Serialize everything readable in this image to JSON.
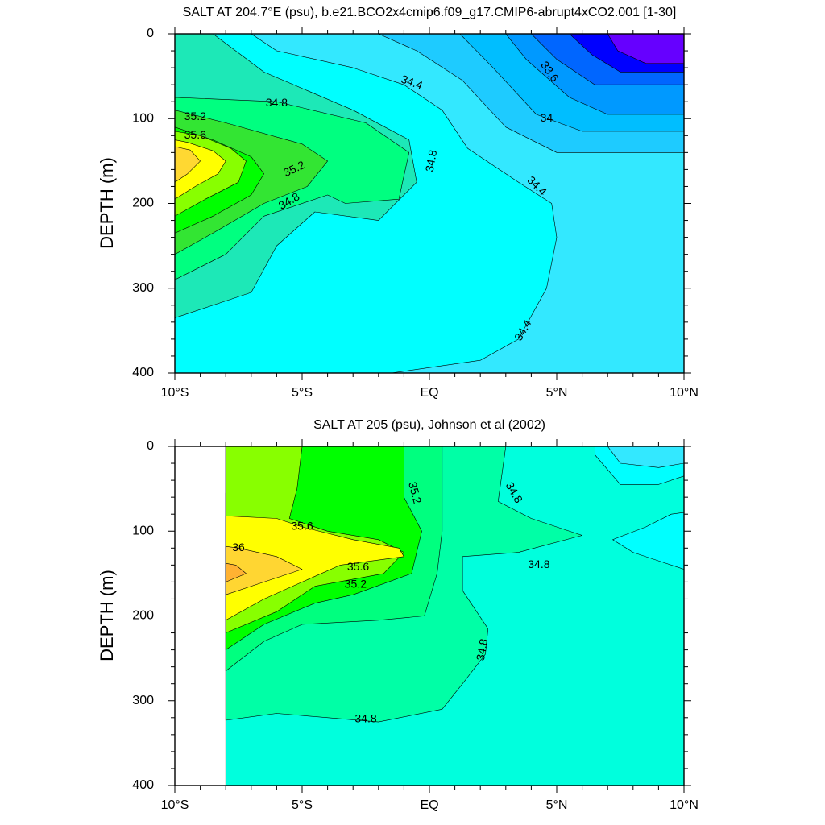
{
  "chart_data": [
    {
      "type": "contour",
      "title": "SALT AT 204.7°E (psu), b.e21.BCO2x4cmip6.f09_g17.CMIP6-abrupt4xCO2.001 [1-30]",
      "ylabel": "DEPTH (m)",
      "xlabel": "",
      "xlim": [
        -10,
        10
      ],
      "ylim": [
        400,
        0
      ],
      "xticks": [
        {
          "value": -10,
          "label": "10°S"
        },
        {
          "value": -5,
          "label": "5°S"
        },
        {
          "value": 0,
          "label": "EQ"
        },
        {
          "value": 5,
          "label": "5°N"
        },
        {
          "value": 10,
          "label": "10°N"
        }
      ],
      "yticks": [
        {
          "value": 0,
          "label": "0"
        },
        {
          "value": 100,
          "label": "100"
        },
        {
          "value": 200,
          "label": "200"
        },
        {
          "value": 300,
          "label": "300"
        },
        {
          "value": 400,
          "label": "400"
        }
      ],
      "contour_interval": 0.2,
      "regions": [
        {
          "level": 34.6,
          "color": "#00ffff",
          "points": [
            [
              -10,
              400
            ],
            [
              10,
              400
            ],
            [
              10,
              0
            ],
            [
              -10,
              0
            ]
          ]
        },
        {
          "level": 34.8,
          "color": "#1de8b7",
          "points": [
            [
              -10,
              335
            ],
            [
              -7,
              305
            ],
            [
              -6,
              250
            ],
            [
              -4.5,
              210
            ],
            [
              -2,
              220
            ],
            [
              -0.5,
              175
            ],
            [
              -0.8,
              125
            ],
            [
              -3,
              90
            ],
            [
              -6.5,
              45
            ],
            [
              -8.5,
              0
            ],
            [
              -10,
              0
            ]
          ]
        },
        {
          "level": 35.0,
          "color": "#00ff80",
          "points": [
            [
              -10,
              290
            ],
            [
              -8,
              260
            ],
            [
              -6.5,
              215
            ],
            [
              -4,
              190
            ],
            [
              -3.3,
              200
            ],
            [
              -1.2,
              195
            ],
            [
              -0.8,
              140
            ],
            [
              -2.5,
              105
            ],
            [
              -6,
              80
            ],
            [
              -10,
              75
            ]
          ]
        },
        {
          "level": 35.2,
          "color": "#33e533",
          "points": [
            [
              -10,
              260
            ],
            [
              -8.5,
              235
            ],
            [
              -6.5,
              200
            ],
            [
              -4.8,
              180
            ],
            [
              -4,
              150
            ],
            [
              -5,
              130
            ],
            [
              -8,
              105
            ],
            [
              -10,
              90
            ]
          ]
        },
        {
          "level": 35.4,
          "color": "#00ff00",
          "points": [
            [
              -10,
              235
            ],
            [
              -8.5,
              215
            ],
            [
              -7,
              190
            ],
            [
              -6.5,
              165
            ],
            [
              -7,
              145
            ],
            [
              -8.5,
              125
            ],
            [
              -10,
              110
            ]
          ]
        },
        {
          "level": 35.6,
          "color": "#88ff00",
          "points": [
            [
              -10,
              215
            ],
            [
              -8.8,
              195
            ],
            [
              -7.5,
              175
            ],
            [
              -7.2,
              150
            ],
            [
              -7.8,
              135
            ],
            [
              -9,
              120
            ],
            [
              -10,
              115
            ]
          ]
        },
        {
          "level": 35.8,
          "color": "#ffff00",
          "points": [
            [
              -10,
              195
            ],
            [
              -9.2,
              180
            ],
            [
              -8.3,
              165
            ],
            [
              -8,
              150
            ],
            [
              -8.5,
              138
            ],
            [
              -9.5,
              128
            ],
            [
              -10,
              125
            ]
          ]
        },
        {
          "level": 36.0,
          "color": "#ffd832",
          "points": [
            [
              -10,
              175
            ],
            [
              -9.5,
              165
            ],
            [
              -9,
              150
            ],
            [
              -9.4,
              137
            ],
            [
              -10,
              133
            ]
          ]
        },
        {
          "level": 34.4,
          "color": "#33e8ff",
          "points": [
            [
              -7,
              0
            ],
            [
              -6,
              20
            ],
            [
              -3,
              40
            ],
            [
              -1,
              60
            ],
            [
              0.5,
              90
            ],
            [
              1.5,
              135
            ],
            [
              3.5,
              175
            ],
            [
              4.8,
              200
            ],
            [
              5,
              240
            ],
            [
              4.6,
              300
            ],
            [
              3.5,
              360
            ],
            [
              2,
              385
            ],
            [
              -1.5,
              400
            ],
            [
              10,
              400
            ],
            [
              10,
              0
            ]
          ]
        },
        {
          "level": 34.2,
          "color": "#1ecbff",
          "points": [
            [
              -2,
              0
            ],
            [
              -0.5,
              20
            ],
            [
              1.3,
              55
            ],
            [
              3,
              110
            ],
            [
              5,
              140
            ],
            [
              10,
              140
            ],
            [
              10,
              0
            ]
          ]
        },
        {
          "level": 34.0,
          "color": "#00beff",
          "points": [
            [
              1.2,
              0
            ],
            [
              2.5,
              40
            ],
            [
              4.2,
              95
            ],
            [
              6,
              115
            ],
            [
              10,
              115
            ],
            [
              10,
              0
            ]
          ]
        },
        {
          "level": 33.8,
          "color": "#0099ff",
          "points": [
            [
              3,
              0
            ],
            [
              3.8,
              30
            ],
            [
              5.5,
              75
            ],
            [
              7,
              95
            ],
            [
              10,
              95
            ],
            [
              10,
              0
            ]
          ]
        },
        {
          "level": 33.6,
          "color": "#0066ff",
          "points": [
            [
              4,
              0
            ],
            [
              5,
              30
            ],
            [
              6.5,
              60
            ],
            [
              10,
              60
            ],
            [
              10,
              0
            ]
          ]
        },
        {
          "level": 33.4,
          "color": "#0000ff",
          "points": [
            [
              5.5,
              0
            ],
            [
              6.4,
              25
            ],
            [
              7.5,
              45
            ],
            [
              10,
              45
            ],
            [
              10,
              0
            ]
          ]
        },
        {
          "level": 33.2,
          "color": "#6600ff",
          "points": [
            [
              7,
              0
            ],
            [
              7.4,
              20
            ],
            [
              8.5,
              35
            ],
            [
              10,
              35
            ],
            [
              10,
              0
            ]
          ]
        }
      ],
      "contour_labels": [
        {
          "text": "34.4",
          "x": -0.7,
          "y": 58,
          "angle": 20
        },
        {
          "text": "33.6",
          "x": 4.7,
          "y": 45,
          "angle": 55
        },
        {
          "text": "34.8",
          "x": -6,
          "y": 82,
          "angle": 0
        },
        {
          "text": "34",
          "x": 4.6,
          "y": 100,
          "angle": 0
        },
        {
          "text": "35.2",
          "x": -9.2,
          "y": 98,
          "angle": 0
        },
        {
          "text": "35.6",
          "x": -9.2,
          "y": 120,
          "angle": 0
        },
        {
          "text": "34.8",
          "x": 0.1,
          "y": 150,
          "angle": -80
        },
        {
          "text": "34.4",
          "x": 4.2,
          "y": 180,
          "angle": 45
        },
        {
          "text": "35.2",
          "x": -5.3,
          "y": 160,
          "angle": -25
        },
        {
          "text": "34.8",
          "x": -5.5,
          "y": 198,
          "angle": -30
        },
        {
          "text": "34.4",
          "x": 3.7,
          "y": 350,
          "angle": -60
        }
      ]
    },
    {
      "type": "contour",
      "title": "SALT AT 205 (psu), Johnson et al (2002)",
      "ylabel": "DEPTH (m)",
      "xlabel": "",
      "xlim": [
        -10,
        10
      ],
      "ylim": [
        400,
        0
      ],
      "data_xmin": -8,
      "xticks": [
        {
          "value": -10,
          "label": "10°S"
        },
        {
          "value": -5,
          "label": "5°S"
        },
        {
          "value": 0,
          "label": "EQ"
        },
        {
          "value": 5,
          "label": "5°N"
        },
        {
          "value": 10,
          "label": "10°N"
        }
      ],
      "yticks": [
        {
          "value": 0,
          "label": "0"
        },
        {
          "value": 100,
          "label": "100"
        },
        {
          "value": 200,
          "label": "200"
        },
        {
          "value": 300,
          "label": "300"
        },
        {
          "value": 400,
          "label": "400"
        }
      ],
      "contour_interval": 0.2,
      "regions": [
        {
          "level": 34.8,
          "color": "#00ffdd",
          "points": [
            [
              -8,
              400
            ],
            [
              10,
              400
            ],
            [
              10,
              0
            ],
            [
              -8,
              0
            ]
          ]
        },
        {
          "level": 35.0,
          "color": "#00ffa6",
          "points": [
            [
              -8,
              323
            ],
            [
              -6,
              315
            ],
            [
              -2,
              325
            ],
            [
              0.5,
              310
            ],
            [
              1.3,
              280
            ],
            [
              2.2,
              245
            ],
            [
              2.3,
              215
            ],
            [
              1.3,
              170
            ],
            [
              1.3,
              130
            ],
            [
              3.5,
              125
            ],
            [
              6,
              105
            ],
            [
              4,
              85
            ],
            [
              2.7,
              65
            ],
            [
              3,
              0
            ],
            [
              -8,
              0
            ]
          ]
        },
        {
          "level": 35.2,
          "color": "#00ff7f",
          "points": [
            [
              -8,
              265
            ],
            [
              -6.5,
              230
            ],
            [
              -5,
              210
            ],
            [
              -2,
              205
            ],
            [
              -0.2,
              200
            ],
            [
              0.3,
              150
            ],
            [
              0.5,
              100
            ],
            [
              0.5,
              0
            ],
            [
              -8,
              0
            ]
          ]
        },
        {
          "level": 35.4,
          "color": "#00ff00",
          "points": [
            [
              -8,
              240
            ],
            [
              -6.5,
              210
            ],
            [
              -4.5,
              185
            ],
            [
              -3,
              175
            ],
            [
              -0.7,
              150
            ],
            [
              -0.3,
              100
            ],
            [
              -1,
              60
            ],
            [
              -1,
              0
            ],
            [
              -5,
              0
            ],
            [
              -5.2,
              35
            ],
            [
              -8,
              55
            ]
          ]
        },
        {
          "level": 35.6,
          "color": "#88ff00",
          "points": [
            [
              -8,
              220
            ],
            [
              -6,
              195
            ],
            [
              -4.5,
              165
            ],
            [
              -1.8,
              150
            ],
            [
              -1,
              125
            ],
            [
              -2,
              110
            ],
            [
              -4,
              100
            ],
            [
              -5.5,
              85
            ],
            [
              -5.2,
              50
            ],
            [
              -5,
              0
            ],
            [
              -8,
              0
            ]
          ]
        },
        {
          "level": 35.8,
          "color": "#ffff00",
          "points": [
            [
              -8,
              205
            ],
            [
              -6.5,
              180
            ],
            [
              -5,
              160
            ],
            [
              -3.5,
              140
            ],
            [
              -1,
              130
            ],
            [
              -1.2,
              120
            ],
            [
              -3,
              110
            ],
            [
              -5,
              95
            ],
            [
              -6,
              85
            ],
            [
              -8,
              82
            ]
          ]
        },
        {
          "level": 36.0,
          "color": "#ffd632",
          "points": [
            [
              -8,
              175
            ],
            [
              -6.5,
              160
            ],
            [
              -5,
              145
            ],
            [
              -6,
              130
            ],
            [
              -7.5,
              120
            ],
            [
              -8,
              118
            ]
          ]
        },
        {
          "level": 36.2,
          "color": "#ffb232",
          "points": [
            [
              -8,
              160
            ],
            [
              -7.2,
              150
            ],
            [
              -7.6,
              140
            ],
            [
              -8,
              138
            ]
          ]
        },
        {
          "level": 34.6,
          "color": "#00ffff",
          "points": [
            [
              10,
              145
            ],
            [
              9,
              135
            ],
            [
              8,
              125
            ],
            [
              7.2,
              110
            ],
            [
              8.5,
              95
            ],
            [
              9.5,
              80
            ],
            [
              10,
              78
            ]
          ]
        },
        {
          "level": 34.6,
          "color": "#00ffff",
          "points": [
            [
              10,
              35
            ],
            [
              9,
              45
            ],
            [
              7.5,
              45
            ],
            [
              6.5,
              10
            ],
            [
              6.5,
              0
            ],
            [
              10,
              0
            ]
          ]
        },
        {
          "level": 34.4,
          "color": "#33e8ff",
          "points": [
            [
              10,
              20
            ],
            [
              9,
              25
            ],
            [
              7.5,
              20
            ],
            [
              7,
              0
            ],
            [
              10,
              0
            ]
          ]
        }
      ],
      "contour_labels": [
        {
          "text": "35.2",
          "x": -0.6,
          "y": 55,
          "angle": 75
        },
        {
          "text": "34.8",
          "x": 3.3,
          "y": 55,
          "angle": 60
        },
        {
          "text": "35.6",
          "x": -5,
          "y": 95,
          "angle": 0
        },
        {
          "text": "36",
          "x": -7.5,
          "y": 120,
          "angle": 0
        },
        {
          "text": "35.6",
          "x": -2.8,
          "y": 143,
          "angle": 0
        },
        {
          "text": "34.8",
          "x": 4.3,
          "y": 140,
          "angle": 0
        },
        {
          "text": "35.2",
          "x": -2.9,
          "y": 163,
          "angle": 0
        },
        {
          "text": "34.8",
          "x": 2.1,
          "y": 240,
          "angle": -80
        },
        {
          "text": "34.8",
          "x": -2.5,
          "y": 322,
          "angle": 0
        }
      ]
    }
  ]
}
